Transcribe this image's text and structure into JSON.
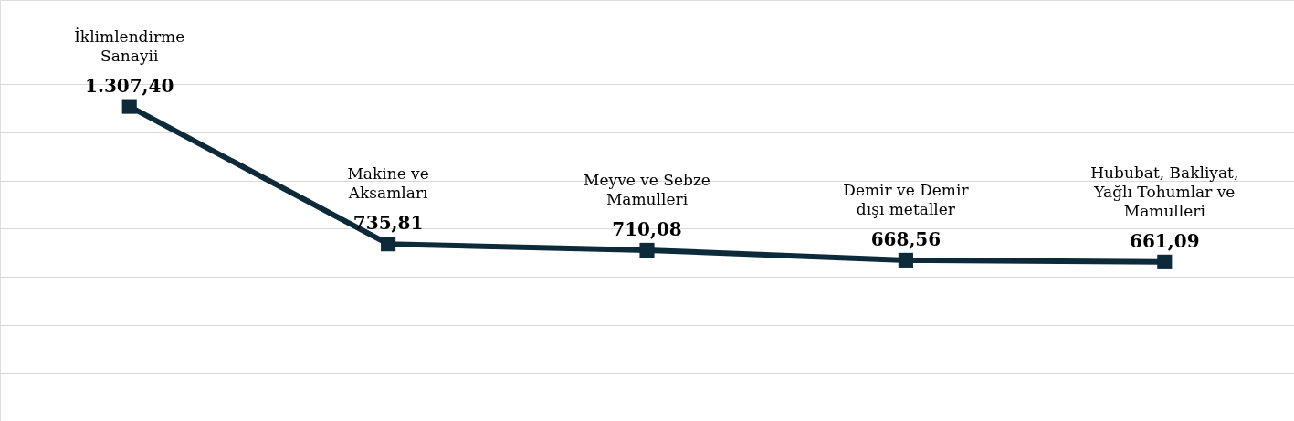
{
  "chart_data": {
    "type": "line",
    "categories": [
      "İklimlendirme Sanayii",
      "Makine ve Aksamları",
      "Meyve ve Sebze Mamulleri",
      "Demir ve Demir dışı metaller",
      "Hububat, Bakliyat, Yağlı Tohumlar ve Mamulleri"
    ],
    "series": [
      {
        "color": "#0d2a3a",
        "values": [
          1307.4,
          735.81,
          710.08,
          668.56,
          661.09
        ],
        "value_labels": [
          "1.307,40",
          "735,81",
          "710,08",
          "668,56",
          "661,09"
        ]
      }
    ],
    "ylim": [
      0,
      1750
    ],
    "yticks": [
      {
        "value": 200,
        "label": null
      },
      {
        "value": 400,
        "label": null
      },
      {
        "value": 600,
        "label": null
      },
      {
        "value": 800,
        "label": null
      },
      {
        "value": 1000,
        "label": null
      },
      {
        "value": 1200,
        "label": null
      },
      {
        "value": 1400,
        "label": null
      }
    ],
    "grid": "y",
    "tick_labels": false,
    "marker": "square",
    "line_style": "solid"
  }
}
